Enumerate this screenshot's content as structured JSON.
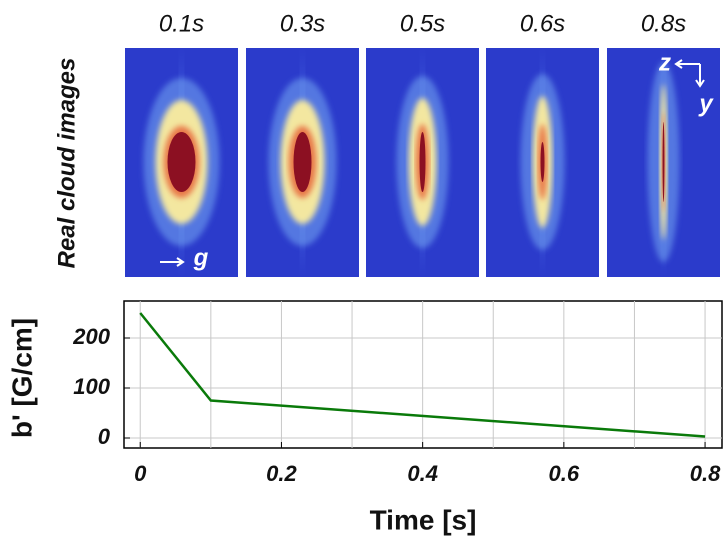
{
  "images": {
    "label": "Real cloud images",
    "times": [
      "0.1s",
      "0.3s",
      "0.5s",
      "0.6s",
      "0.8s"
    ],
    "axis_z": "z",
    "axis_y": "y",
    "gravity": "g"
  },
  "chart_data": {
    "type": "line",
    "x": [
      0,
      0.1,
      0.8
    ],
    "series": [
      {
        "name": "b'",
        "color": "#0a7a0a",
        "values": [
          250,
          75,
          3
        ]
      }
    ],
    "xlabel": "Time [s]",
    "ylabel": "b' [G/cm]",
    "xlim": [
      -0.023,
      0.824
    ],
    "ylim": [
      -20,
      274
    ],
    "xticks": [
      0,
      0.2,
      0.4,
      0.6,
      0.8
    ],
    "yticks": [
      0,
      100,
      200
    ],
    "xgrid": [
      0,
      0.1,
      0.2,
      0.3,
      0.4,
      0.5,
      0.6,
      0.7,
      0.8
    ],
    "grid": true
  }
}
